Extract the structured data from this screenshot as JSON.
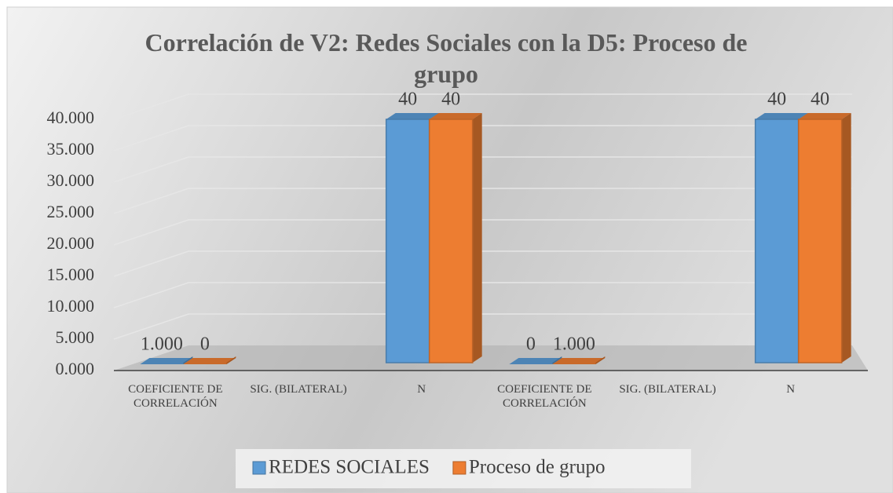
{
  "chart_data": {
    "type": "bar3d",
    "title": "Correlación de V2: Redes Sociales con la D5: Proceso de grupo",
    "categories": [
      "COEFICIENTE DE CORRELACIÓN",
      "SIG. (BILATERAL)",
      "N",
      "COEFICIENTE DE CORRELACIÓN",
      "SIG. (BILATERAL)",
      "N"
    ],
    "series": [
      {
        "name": "REDES SOCIALES",
        "color": "#5b9bd5",
        "values": [
          1,
          null,
          40,
          0,
          null,
          40
        ],
        "value_labels": [
          "1.000",
          null,
          "40",
          "0",
          null,
          "40"
        ]
      },
      {
        "name": "Proceso de grupo",
        "color": "#ed7d31",
        "values": [
          0,
          null,
          40,
          1,
          null,
          40
        ],
        "value_labels": [
          "0",
          null,
          "40",
          "1.000",
          null,
          "40"
        ]
      }
    ],
    "ylim": [
      0,
      40
    ],
    "yticks": [
      {
        "value": 0,
        "label": "0.000"
      },
      {
        "value": 5,
        "label": "5.000"
      },
      {
        "value": 10,
        "label": "10.000"
      },
      {
        "value": 15,
        "label": "15.000"
      },
      {
        "value": 20,
        "label": "20.000"
      },
      {
        "value": 25,
        "label": "25.000"
      },
      {
        "value": 30,
        "label": "30.000"
      },
      {
        "value": 35,
        "label": "35.000"
      },
      {
        "value": 40,
        "label": "40.000"
      }
    ],
    "grid": true,
    "legend": "bottom"
  }
}
